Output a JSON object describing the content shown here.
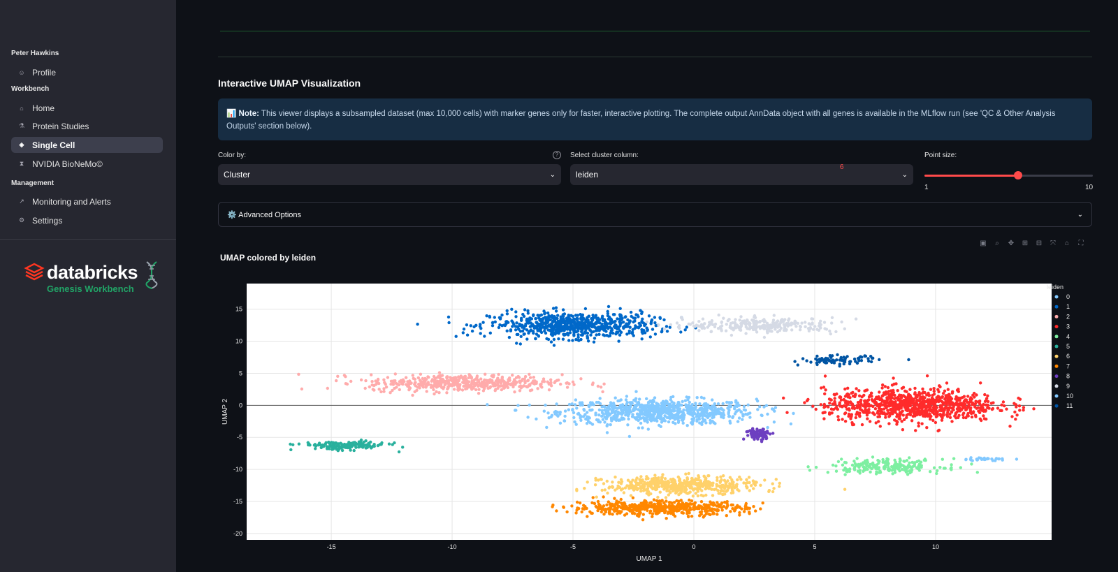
{
  "sidebar": {
    "user_name": "Peter Hawkins",
    "profile_label": "Profile",
    "workbench_label": "Workbench",
    "items": [
      {
        "label": "Home",
        "icon": "home-icon"
      },
      {
        "label": "Protein Studies",
        "icon": "microscope-icon"
      },
      {
        "label": "Single Cell",
        "icon": "pill-icon"
      },
      {
        "label": "NVIDIA BioNeMo©",
        "icon": "dna-icon"
      }
    ],
    "management_label": "Management",
    "management_items": [
      {
        "label": "Monitoring and Alerts",
        "icon": "chart-icon"
      },
      {
        "label": "Settings",
        "icon": "gear-icon"
      }
    ],
    "logo_text": "databricks",
    "logo_sub": "Genesis Workbench"
  },
  "main": {
    "section_title": "Interactive UMAP Visualization",
    "note_icon": "📊",
    "note_bold": "Note:",
    "note_text": "This viewer displays a subsampled dataset (max 10,000 cells) with marker genes only for faster, interactive plotting. The complete output AnnData object with all genes is available in the MLflow run (see 'QC & Other Analysis Outputs' section below).",
    "color_by_label": "Color by:",
    "color_by_value": "Cluster",
    "cluster_col_label": "Select cluster column:",
    "cluster_col_value": "leiden",
    "point_size_label": "Point size:",
    "point_size_value": "6",
    "point_size_min": "1",
    "point_size_max": "10",
    "point_size_fraction": 0.5556,
    "advanced_label": "⚙️ Advanced Options",
    "plot_title": "UMAP colored by leiden"
  },
  "chart_data": {
    "type": "scatter",
    "title": "UMAP colored by leiden",
    "xlabel": "UMAP 1",
    "ylabel": "UMAP 2",
    "xlim": [
      -18.5,
      14.8
    ],
    "ylim": [
      -21,
      19
    ],
    "xticks": [
      -15,
      -10,
      -5,
      0,
      5,
      10
    ],
    "yticks": [
      15,
      10,
      5,
      0,
      -5,
      -10,
      -15,
      -20
    ],
    "legend_title": "leiden",
    "legend_position": "right",
    "series": [
      {
        "name": "0",
        "color": "#83c9ff",
        "centroid": [
          -1.5,
          -1.0
        ],
        "spread": [
          4.5,
          2.4
        ]
      },
      {
        "name": "1",
        "color": "#0068c9",
        "centroid": [
          -5.0,
          12.5
        ],
        "spread": [
          3.8,
          2.5
        ]
      },
      {
        "name": "2",
        "color": "#ffabab",
        "centroid": [
          -9.5,
          3.5
        ],
        "spread": [
          4.5,
          1.6
        ]
      },
      {
        "name": "3",
        "color": "#ff2b2b",
        "centroid": [
          9.0,
          0.0
        ],
        "spread": [
          4.0,
          3.2
        ]
      },
      {
        "name": "4",
        "color": "#7defa1",
        "centroid": [
          8.0,
          -9.5
        ],
        "spread": [
          2.6,
          1.4
        ]
      },
      {
        "name": "5",
        "color": "#29b09d",
        "centroid": [
          -14.5,
          -6.3
        ],
        "spread": [
          2.0,
          0.8
        ]
      },
      {
        "name": "6",
        "color": "#ffd16a",
        "centroid": [
          -0.5,
          -12.5
        ],
        "spread": [
          3.5,
          1.7
        ]
      },
      {
        "name": "7",
        "color": "#ff8700",
        "centroid": [
          -1.5,
          -16.0
        ],
        "spread": [
          4.0,
          1.4
        ]
      },
      {
        "name": "8",
        "color": "#6d3fc0",
        "centroid": [
          2.7,
          -4.5
        ],
        "spread": [
          0.6,
          1.1
        ]
      },
      {
        "name": "9",
        "color": "#d5dae5",
        "centroid": [
          2.8,
          12.5
        ],
        "spread": [
          3.5,
          1.4
        ]
      },
      {
        "name": "10",
        "color": "#83c9ff",
        "centroid": [
          12.0,
          -8.4
        ],
        "spread": [
          1.1,
          0.3
        ]
      },
      {
        "name": "11",
        "color": "#0054a3",
        "centroid": [
          6.0,
          7.0
        ],
        "spread": [
          1.8,
          0.9
        ]
      }
    ]
  }
}
